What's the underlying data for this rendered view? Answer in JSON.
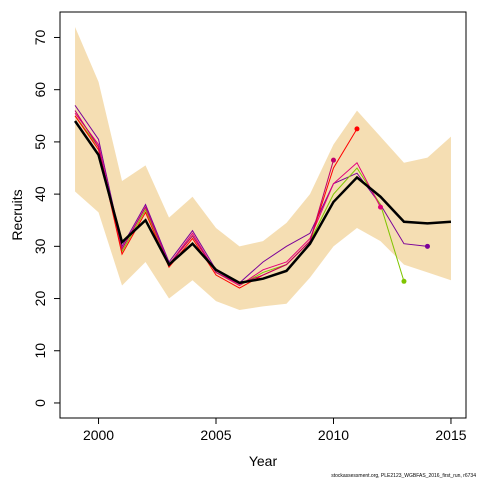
{
  "chart_data": {
    "type": "line",
    "xlabel": "Year",
    "ylabel": "Recruits",
    "footnote": "stockassessment.org, PLE2123_WGBFAS_2016_first_run, r6734",
    "x": [
      1999,
      2000,
      2001,
      2002,
      2003,
      2004,
      2005,
      2006,
      2007,
      2008,
      2009,
      2010,
      2011,
      2012,
      2013,
      2014,
      2015
    ],
    "band": {
      "color": "#f5deb3",
      "upper": [
        72,
        61.5,
        42.5,
        45.5,
        35.5,
        39.5,
        33.5,
        30,
        31,
        34.5,
        40,
        49.5,
        56,
        51,
        46,
        47,
        51
      ],
      "lower": [
        40.5,
        36.5,
        22.5,
        27,
        20,
        23.5,
        19.5,
        17.8,
        18.5,
        19,
        24,
        30,
        33.5,
        31,
        26.5,
        25,
        23.5
      ]
    },
    "main": {
      "color": "#000000",
      "values": [
        54,
        47.5,
        30.8,
        35,
        26.5,
        30.5,
        25.5,
        23,
        23.8,
        25.3,
        30.5,
        38.5,
        43.2,
        39.5,
        34.7,
        34.4,
        34.7
      ]
    },
    "series": [
      {
        "color": "#7b0099",
        "values": [
          57,
          50.5,
          30,
          38,
          27,
          33,
          25.5,
          23,
          27,
          30,
          32.5,
          42,
          44,
          38,
          30.5,
          30,
          null
        ]
      },
      {
        "color": "#7fc400",
        "values": [
          55,
          49,
          29,
          37,
          26.5,
          32,
          25,
          22.5,
          25,
          26.5,
          31,
          40,
          45,
          38,
          23.3,
          null,
          null
        ]
      },
      {
        "color": "#e3007a",
        "values": [
          55.5,
          49.5,
          29.5,
          37.5,
          26.5,
          32.5,
          25,
          22.5,
          25.5,
          27,
          31.5,
          42,
          46,
          37.5,
          null,
          null,
          null
        ]
      },
      {
        "color": "#ff0000",
        "values": [
          55,
          48.5,
          28.5,
          36.5,
          26,
          31.5,
          24.5,
          22,
          24.5,
          26.5,
          31,
          45,
          52.5,
          null,
          null,
          null,
          null
        ]
      },
      {
        "color": "#c0006b",
        "values": [
          56,
          49,
          29.5,
          37.5,
          26.5,
          32,
          25,
          22.8,
          24.5,
          26.5,
          31,
          46.5,
          null,
          null,
          null,
          null,
          null
        ]
      }
    ],
    "xlim": [
      1998.36,
      2015.64
    ],
    "ylim": [
      -2.88,
      74.88
    ],
    "xticks": [
      2000,
      2005,
      2010,
      2015
    ],
    "yticks": [
      0,
      10,
      20,
      30,
      40,
      50,
      60,
      70
    ]
  }
}
